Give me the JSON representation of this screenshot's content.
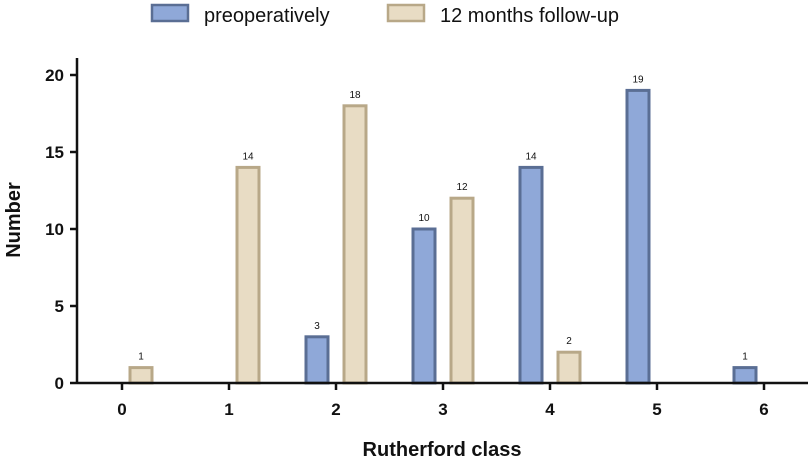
{
  "chart_data": {
    "type": "bar",
    "categories": [
      "0",
      "1",
      "2",
      "3",
      "4",
      "5",
      "6"
    ],
    "series": [
      {
        "name": "preoperatively",
        "values": [
          0,
          0,
          3,
          10,
          14,
          19,
          1
        ],
        "labels": [
          "",
          "",
          "3",
          "10",
          "14",
          "19",
          "1"
        ],
        "fill": "#8fa8d8",
        "stroke": "#5a6e94"
      },
      {
        "name": "12 months follow-up",
        "values": [
          1,
          14,
          18,
          12,
          2,
          0,
          0
        ],
        "labels": [
          "1",
          "14",
          "18",
          "12",
          "2",
          "",
          ""
        ],
        "fill": "#e8dcc4",
        "stroke": "#b8a888"
      }
    ],
    "xlabel": "Rutherford class",
    "ylabel": "Number",
    "ylim": [
      0,
      21
    ],
    "yticks": [
      "0",
      "5",
      "10",
      "15",
      "20"
    ],
    "legend_position": "top-center",
    "grid": false
  }
}
